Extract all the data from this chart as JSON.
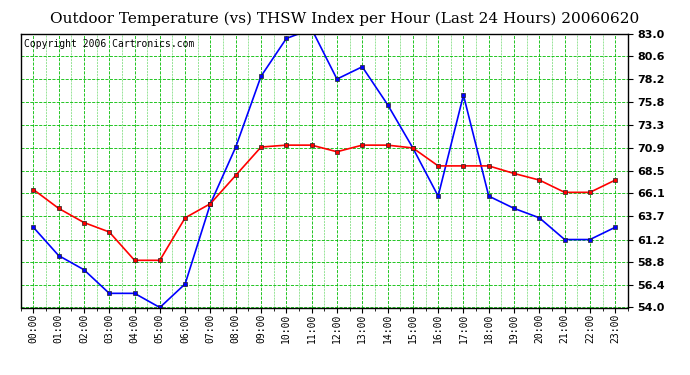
{
  "title": "Outdoor Temperature (vs) THSW Index per Hour (Last 24 Hours) 20060620",
  "copyright": "Copyright 2006 Cartronics.com",
  "hours": [
    "00:00",
    "01:00",
    "02:00",
    "03:00",
    "04:00",
    "05:00",
    "06:00",
    "07:00",
    "08:00",
    "09:00",
    "10:00",
    "11:00",
    "12:00",
    "13:00",
    "14:00",
    "15:00",
    "16:00",
    "17:00",
    "18:00",
    "19:00",
    "20:00",
    "21:00",
    "22:00",
    "23:00"
  ],
  "temp_blue": [
    62.5,
    59.5,
    58.0,
    55.5,
    55.5,
    54.0,
    56.5,
    65.0,
    71.0,
    78.5,
    82.5,
    83.5,
    78.2,
    79.5,
    75.5,
    70.9,
    65.8,
    76.5,
    65.8,
    64.5,
    63.5,
    61.2,
    61.2,
    62.5
  ],
  "thsw_red": [
    66.5,
    64.5,
    63.0,
    62.0,
    59.0,
    59.0,
    63.5,
    65.0,
    68.0,
    71.0,
    71.2,
    71.2,
    70.5,
    71.2,
    71.2,
    70.9,
    69.0,
    69.0,
    69.0,
    68.2,
    67.5,
    66.2,
    66.2,
    67.5
  ],
  "ylim": [
    54.0,
    83.0
  ],
  "yticks": [
    54.0,
    56.4,
    58.8,
    61.2,
    63.7,
    66.1,
    68.5,
    70.9,
    73.3,
    75.8,
    78.2,
    80.6,
    83.0
  ],
  "blue_color": "#0000FF",
  "red_color": "#FF0000",
  "bg_color": "#FFFFFF",
  "plot_bg_color": "#FFFFFF",
  "grid_color": "#00BB00",
  "title_fontsize": 11,
  "copyright_fontsize": 7,
  "tick_fontsize": 7,
  "border_color": "#000000"
}
